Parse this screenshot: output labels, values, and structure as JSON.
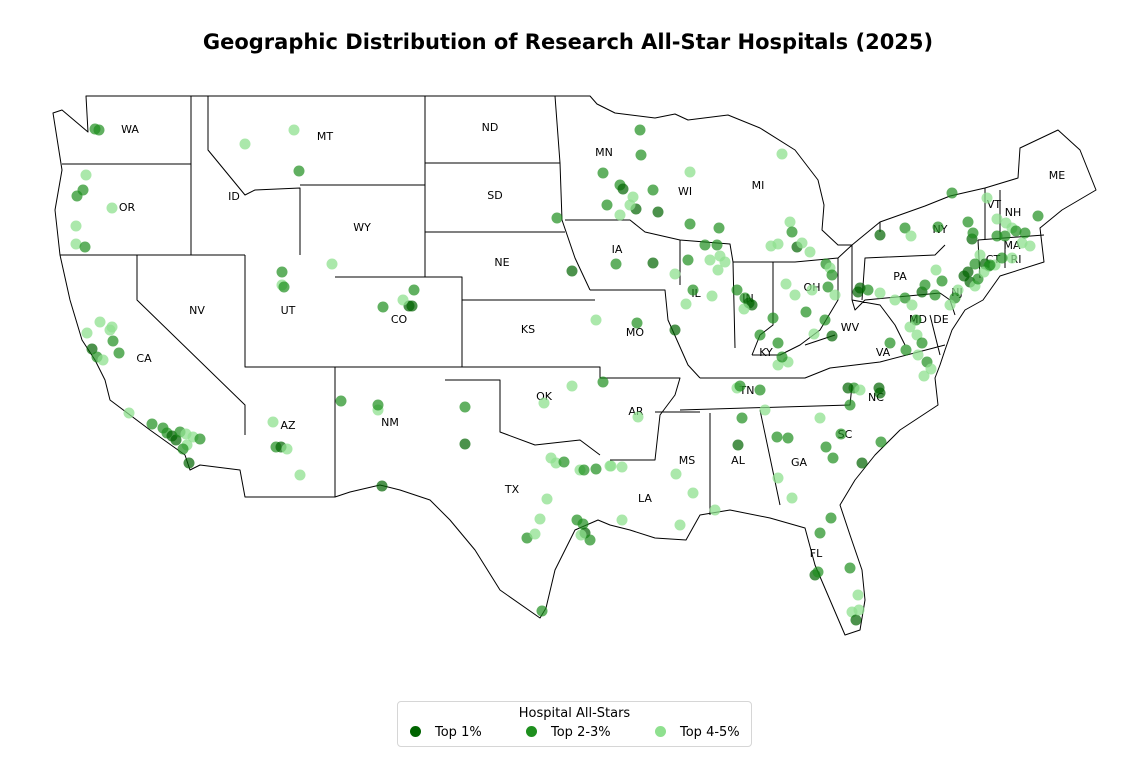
{
  "title": "Geographic Distribution of Research All-Star Hospitals (2025)",
  "legend": {
    "title": "Hospital All-Stars",
    "items": [
      {
        "label": "Top 1%",
        "color": "#006400"
      },
      {
        "label": "Top 2-3%",
        "color": "#1e8f1e"
      },
      {
        "label": "Top 4-5%",
        "color": "#8fe08f"
      }
    ]
  },
  "states": [
    "WA",
    "OR",
    "CA",
    "ID",
    "NV",
    "MT",
    "WY",
    "UT",
    "AZ",
    "CO",
    "NM",
    "ND",
    "SD",
    "NE",
    "KS",
    "OK",
    "TX",
    "MN",
    "IA",
    "MO",
    "AR",
    "LA",
    "WI",
    "IL",
    "MI",
    "IN",
    "OH",
    "KY",
    "TN",
    "MS",
    "AL",
    "GA",
    "FL",
    "SC",
    "NC",
    "VA",
    "WV",
    "PA",
    "NY",
    "VT",
    "NH",
    "ME",
    "MA",
    "RI",
    "CT",
    "NJ",
    "DE",
    "MD"
  ]
}
